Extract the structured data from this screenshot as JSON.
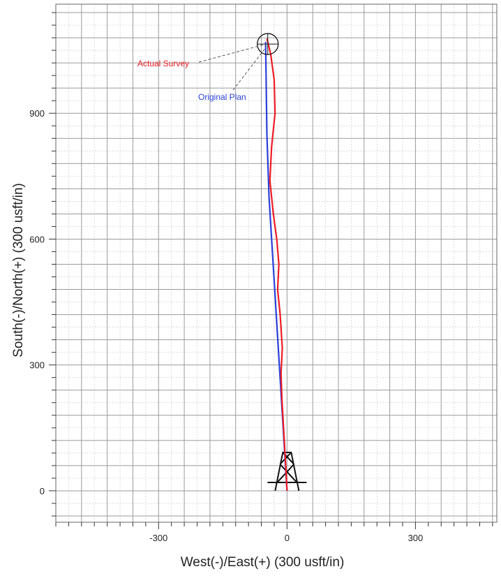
{
  "chart_data": {
    "type": "line",
    "title": "",
    "xlabel": "West(-)/East(+) (300 usft/in)",
    "ylabel": "South(-)/North(+) (300 usft/in)",
    "xlim": [
      -540,
      490
    ],
    "ylim": [
      -75,
      1160
    ],
    "x_ticks": [
      -300,
      0,
      300
    ],
    "y_ticks": [
      0,
      300,
      600,
      900
    ],
    "grid": true,
    "major_grid_step": 60,
    "minor_grid_step": 30,
    "colors": {
      "actual": "#ee1c25",
      "plan": "#2b3fd8",
      "grid_major": "#9a9a9a",
      "grid_minor": "#cccccc",
      "annotation_leader": "#555555"
    },
    "series": [
      {
        "name": "Original Plan",
        "x": [
          0,
          -6,
          -12,
          -18,
          -24,
          -30,
          -36,
          -42,
          -47,
          -50
        ],
        "y": [
          0,
          100,
          200,
          300,
          400,
          500,
          600,
          700,
          850,
          1070
        ]
      },
      {
        "name": "Actual Survey",
        "x": [
          0,
          -3,
          -7,
          -12,
          -14,
          -11,
          -16,
          -22,
          -19,
          -24,
          -32,
          -40,
          -36,
          -28,
          -30,
          -38,
          -44,
          -47
        ],
        "y": [
          0,
          60,
          130,
          220,
          280,
          340,
          420,
          480,
          540,
          600,
          660,
          740,
          820,
          900,
          980,
          1040,
          1066,
          1078
        ]
      }
    ],
    "annotations": [
      {
        "text": "Actual Survey",
        "series": "Actual Survey",
        "color": "#ee1c25"
      },
      {
        "text": "Original Plan",
        "series": "Original Plan",
        "color": "#2b3fd8"
      }
    ],
    "target": {
      "x": -45,
      "y": 1065,
      "shape": "circle-crosshair"
    },
    "wellhead": {
      "x": 0,
      "y": 0,
      "shape": "rig"
    }
  }
}
